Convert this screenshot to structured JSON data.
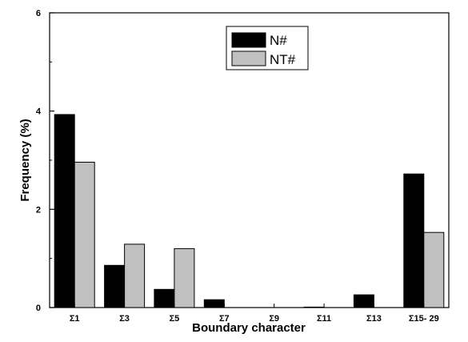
{
  "chart_data": {
    "type": "bar",
    "xlabel": "Boundary character",
    "ylabel": "Frequency (%)",
    "ylim": [
      0,
      6
    ],
    "yticks": [
      0,
      2,
      4,
      6
    ],
    "ytick_labels": [
      "0",
      "2",
      "4",
      "6"
    ],
    "categories": [
      "Σ1",
      "Σ3",
      "Σ5",
      "Σ7",
      "Σ9",
      "Σ11",
      "Σ13",
      "Σ15- 29"
    ],
    "series": [
      {
        "name": "N#",
        "color": "#000000",
        "values": [
          3.93,
          0.86,
          0.37,
          0.16,
          0.0,
          0.01,
          0.26,
          2.72
        ]
      },
      {
        "name": "NT#",
        "color": "#c0c0c0",
        "values": [
          2.96,
          1.29,
          1.2,
          0.0,
          0.0,
          0.0,
          0.0,
          1.53
        ]
      }
    ],
    "legend_position": "top-right",
    "grid": false
  }
}
